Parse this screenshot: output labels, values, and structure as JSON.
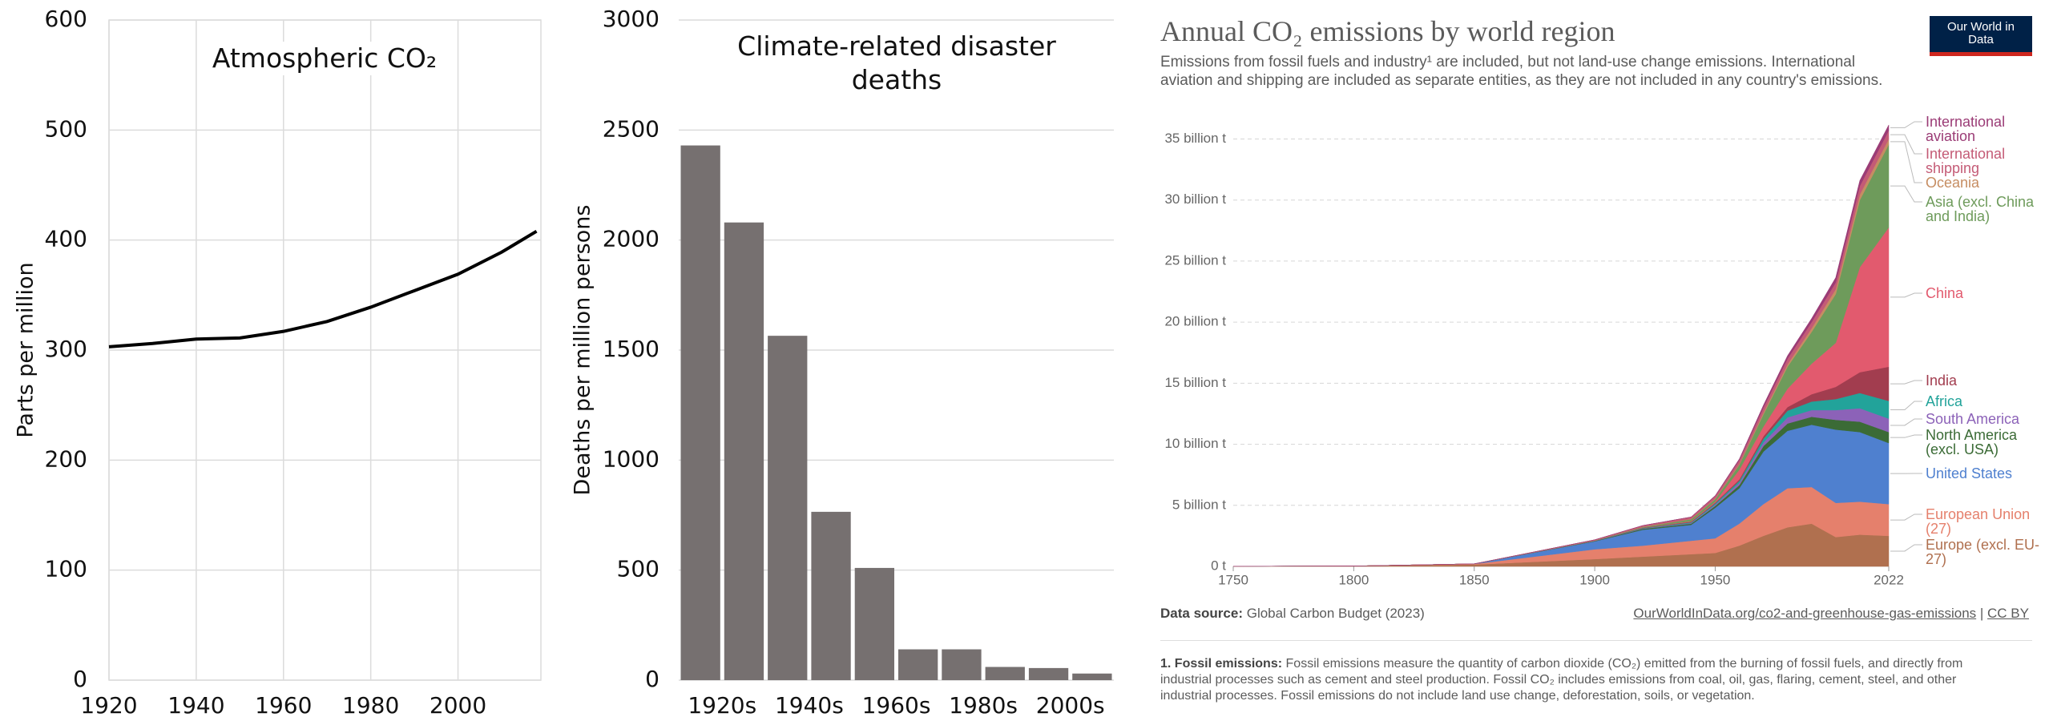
{
  "chart_data": [
    {
      "type": "line",
      "title": "Atmospheric CO₂",
      "ylabel": "Parts per million",
      "x": [
        1920,
        1930,
        1940,
        1950,
        1960,
        1970,
        1980,
        1990,
        2000,
        2010,
        2018
      ],
      "values": [
        303,
        306,
        310,
        311,
        317,
        326,
        339,
        354,
        369,
        389,
        408
      ],
      "color": "#000000",
      "xlim": [
        1920,
        2019
      ],
      "xticks": [
        1920,
        1940,
        1960,
        1980,
        2000
      ],
      "ylim": [
        0,
        600
      ],
      "yticks": [
        0,
        100,
        200,
        300,
        400,
        500,
        600
      ],
      "grid": true
    },
    {
      "type": "bar",
      "title": "Climate-related disaster deaths",
      "ylabel": "Deaths per million persons",
      "categories": [
        "1920s",
        null,
        "1940s",
        null,
        "1960s",
        null,
        "1980s",
        null,
        "2000s",
        null
      ],
      "values": [
        2430,
        2080,
        1565,
        765,
        510,
        140,
        140,
        60,
        55,
        30
      ],
      "color": "#767070",
      "ylim": [
        0,
        3000
      ],
      "yticks": [
        0,
        500,
        1000,
        1500,
        2000,
        2500,
        3000
      ],
      "grid": true
    },
    {
      "type": "area",
      "title": "Annual CO₂ emissions by world region",
      "subtitle": "Emissions from fossil fuels and industry¹ are included, but not land-use change emissions. International aviation and shipping are included as separate entities, as they are not included in any country's emissions.",
      "logo": "Our World in Data",
      "source_label": "Data source:",
      "source": "Global Carbon Budget (2023)",
      "url": "OurWorldInData.org/co2-and-greenhouse-gas-emissions",
      "license": "CC BY",
      "footnote_label": "1. Fossil emissions:",
      "footnote": "Fossil emissions measure the quantity of carbon dioxide (CO₂) emitted from the burning of fossil fuels, and directly from industrial processes such as cement and steel production. Fossil CO₂ includes emissions from coal, oil, gas, flaring, cement, steel, and other industrial processes. Fossil emissions do not include land use change, deforestation, soils, or vegetation.",
      "stacked": true,
      "x": [
        1750,
        1800,
        1850,
        1900,
        1920,
        1940,
        1950,
        1960,
        1970,
        1980,
        1990,
        2000,
        2010,
        2022
      ],
      "xlim": [
        1750,
        2022
      ],
      "xticks": [
        1750,
        1800,
        1850,
        1900,
        1950,
        2022
      ],
      "ylim": [
        0,
        37
      ],
      "yticks": [
        {
          "value": 0,
          "label": "0 t"
        },
        {
          "value": 5,
          "label": "5 billion t"
        },
        {
          "value": 10,
          "label": "10 billion t"
        },
        {
          "value": 15,
          "label": "15 billion t"
        },
        {
          "value": 20,
          "label": "20 billion t"
        },
        {
          "value": 25,
          "label": "25 billion t"
        },
        {
          "value": 30,
          "label": "30 billion t"
        },
        {
          "value": 35,
          "label": "35 billion t"
        }
      ],
      "grid": true,
      "series": [
        {
          "name": "Europe (excl. EU-27)",
          "color": "#b0704f",
          "values": [
            0.01,
            0.03,
            0.15,
            0.6,
            0.8,
            1.0,
            1.1,
            1.7,
            2.5,
            3.2,
            3.5,
            2.4,
            2.6,
            2.5
          ]
        },
        {
          "name": "European Union (27)",
          "color": "#e5806c",
          "values": [
            0,
            0,
            0.05,
            0.8,
            0.9,
            1.1,
            1.2,
            1.8,
            2.6,
            3.2,
            3.0,
            2.8,
            2.7,
            2.6
          ]
        },
        {
          "name": "United States",
          "color": "#4f80cf",
          "values": [
            0,
            0,
            0.01,
            0.65,
            1.3,
            1.3,
            2.5,
            2.9,
            4.3,
            4.7,
            5.1,
            6.0,
            5.7,
            5.0
          ]
        },
        {
          "name": "North America (excl. USA)",
          "color": "#3b6b36",
          "values": [
            0,
            0,
            0,
            0.03,
            0.08,
            0.1,
            0.15,
            0.25,
            0.45,
            0.6,
            0.65,
            0.8,
            0.85,
            0.9
          ]
        },
        {
          "name": "South America",
          "color": "#8c62b8",
          "values": [
            0,
            0,
            0,
            0.01,
            0.03,
            0.05,
            0.1,
            0.2,
            0.3,
            0.5,
            0.55,
            0.8,
            1.1,
            1.1
          ]
        },
        {
          "name": "Africa",
          "color": "#22a39a",
          "values": [
            0,
            0,
            0,
            0.01,
            0.03,
            0.06,
            0.1,
            0.15,
            0.3,
            0.55,
            0.7,
            0.9,
            1.25,
            1.45
          ]
        },
        {
          "name": "India",
          "color": "#a23d4f",
          "values": [
            0,
            0,
            0,
            0.01,
            0.03,
            0.05,
            0.07,
            0.12,
            0.2,
            0.3,
            0.6,
            1.0,
            1.7,
            2.8
          ]
        },
        {
          "name": "China",
          "color": "#e25a6e",
          "values": [
            0,
            0,
            0,
            0,
            0.01,
            0.05,
            0.08,
            0.8,
            0.8,
            1.5,
            2.5,
            3.6,
            8.6,
            11.4
          ]
        },
        {
          "name": "Asia (excl. China and India)",
          "color": "#6e9b5b",
          "values": [
            0,
            0,
            0,
            0.01,
            0.05,
            0.15,
            0.2,
            0.4,
            1.0,
            1.8,
            2.6,
            4.0,
            5.5,
            6.8
          ]
        },
        {
          "name": "Oceania",
          "color": "#c68d62",
          "values": [
            0,
            0,
            0,
            0.01,
            0.02,
            0.03,
            0.05,
            0.08,
            0.15,
            0.2,
            0.3,
            0.4,
            0.45,
            0.45
          ]
        },
        {
          "name": "International shipping",
          "color": "#c45b76",
          "values": [
            0,
            0,
            0,
            0.05,
            0.1,
            0.15,
            0.2,
            0.3,
            0.4,
            0.45,
            0.5,
            0.55,
            0.7,
            0.7
          ]
        },
        {
          "name": "International aviation",
          "color": "#9b3c76",
          "values": [
            0,
            0,
            0,
            0,
            0,
            0.01,
            0.05,
            0.1,
            0.2,
            0.25,
            0.3,
            0.4,
            0.45,
            0.45
          ]
        }
      ]
    }
  ]
}
